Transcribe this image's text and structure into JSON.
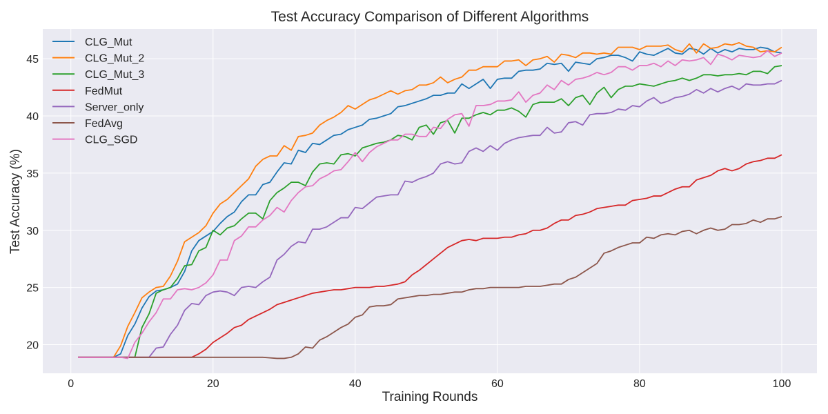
{
  "chart_data": {
    "type": "line",
    "title": "Test Accuracy Comparison of Different Algorithms",
    "xlabel": "Training Rounds",
    "ylabel": "Test Accuracy (%)",
    "xlim": [
      -3.95,
      104.95
    ],
    "ylim": [
      17.5,
      47.6
    ],
    "xticks": [
      0,
      20,
      40,
      60,
      80,
      100
    ],
    "yticks": [
      20,
      25,
      30,
      35,
      40,
      45
    ],
    "grid": true,
    "legend_position": "top-left",
    "x": [
      1,
      2,
      3,
      4,
      5,
      6,
      7,
      8,
      9,
      10,
      11,
      12,
      13,
      14,
      15,
      16,
      17,
      18,
      19,
      20,
      21,
      22,
      23,
      24,
      25,
      26,
      27,
      28,
      29,
      30,
      31,
      32,
      33,
      34,
      35,
      36,
      37,
      38,
      39,
      40,
      41,
      42,
      43,
      44,
      45,
      46,
      47,
      48,
      49,
      50,
      51,
      52,
      53,
      54,
      55,
      56,
      57,
      58,
      59,
      60,
      61,
      62,
      63,
      64,
      65,
      66,
      67,
      68,
      69,
      70,
      71,
      72,
      73,
      74,
      75,
      76,
      77,
      78,
      79,
      80,
      81,
      82,
      83,
      84,
      85,
      86,
      87,
      88,
      89,
      90,
      91,
      92,
      93,
      94,
      95,
      96,
      97,
      98,
      99,
      100
    ],
    "series": [
      {
        "name": "CLG_Mut",
        "color": "#1f77b4",
        "values": [
          18.9,
          18.9,
          18.9,
          18.9,
          18.9,
          18.9,
          19.2,
          20.8,
          21.8,
          23.2,
          24.2,
          24.7,
          24.8,
          25.0,
          25.3,
          26.4,
          28.2,
          29.1,
          29.5,
          29.9,
          30.6,
          31.2,
          31.6,
          32.5,
          33.1,
          33.1,
          34.0,
          34.2,
          35.1,
          35.9,
          35.8,
          37.0,
          36.8,
          37.6,
          37.5,
          37.9,
          38.3,
          38.4,
          38.8,
          39.0,
          39.2,
          39.7,
          39.8,
          40.0,
          40.2,
          40.8,
          40.9,
          41.1,
          41.3,
          41.5,
          41.8,
          41.8,
          42.0,
          42.0,
          42.8,
          42.4,
          42.8,
          43.2,
          42.4,
          43.2,
          43.3,
          43.3,
          43.9,
          44.0,
          44.0,
          44.1,
          44.6,
          44.5,
          44.6,
          43.9,
          44.7,
          44.6,
          44.5,
          45.0,
          45.1,
          45.3,
          45.3,
          45.1,
          44.8,
          45.6,
          45.4,
          45.3,
          45.6,
          45.9,
          45.5,
          45.4,
          45.9,
          45.8,
          45.4,
          45.9,
          45.5,
          45.8,
          45.6,
          45.9,
          45.8,
          45.8,
          46.0,
          45.9,
          45.6,
          45.5
        ]
      },
      {
        "name": "CLG_Mut_2",
        "color": "#ff7f0e",
        "values": [
          18.9,
          18.9,
          18.9,
          18.9,
          18.9,
          18.9,
          19.9,
          21.6,
          22.8,
          24.1,
          24.6,
          25.0,
          25.1,
          26.0,
          27.3,
          29.0,
          29.4,
          29.8,
          30.4,
          31.5,
          32.3,
          32.7,
          33.3,
          33.9,
          34.5,
          35.6,
          36.2,
          36.5,
          36.5,
          37.4,
          37.0,
          38.2,
          38.3,
          38.5,
          39.2,
          39.6,
          39.9,
          40.3,
          40.9,
          40.6,
          41.0,
          41.4,
          41.6,
          41.9,
          42.2,
          41.9,
          42.2,
          42.3,
          42.7,
          42.7,
          42.9,
          43.4,
          42.9,
          43.2,
          43.4,
          44.0,
          44.0,
          44.3,
          44.3,
          44.3,
          44.8,
          44.8,
          44.9,
          44.4,
          44.9,
          45.0,
          45.2,
          44.7,
          45.4,
          45.3,
          45.1,
          45.5,
          45.5,
          45.4,
          45.5,
          45.4,
          46.0,
          46.0,
          46.0,
          45.8,
          46.1,
          46.1,
          46.1,
          46.2,
          45.8,
          45.6,
          46.3,
          45.5,
          46.3,
          45.9,
          46.0,
          46.3,
          46.2,
          46.4,
          46.1,
          46.0,
          45.6,
          45.7,
          45.6,
          46.0
        ]
      },
      {
        "name": "CLG_Mut_3",
        "color": "#2ca02c",
        "values": [
          18.9,
          18.9,
          18.9,
          18.9,
          18.9,
          18.9,
          18.9,
          18.9,
          18.9,
          21.5,
          22.7,
          24.5,
          24.8,
          25.0,
          25.8,
          26.9,
          27.0,
          28.2,
          28.5,
          30.0,
          29.6,
          30.2,
          30.4,
          31.0,
          31.5,
          31.5,
          31.0,
          32.6,
          33.3,
          33.7,
          34.2,
          34.2,
          33.9,
          35.1,
          35.8,
          35.9,
          35.8,
          36.6,
          36.7,
          36.5,
          37.2,
          37.4,
          37.6,
          37.7,
          37.9,
          38.3,
          38.2,
          37.9,
          39.0,
          39.2,
          38.4,
          39.4,
          39.6,
          38.5,
          39.8,
          39.8,
          40.1,
          40.3,
          40.1,
          40.5,
          40.5,
          40.7,
          40.4,
          39.9,
          41.0,
          41.2,
          41.2,
          41.2,
          41.5,
          40.9,
          41.6,
          41.8,
          41.0,
          42.0,
          42.5,
          41.6,
          42.3,
          42.6,
          42.6,
          42.8,
          42.7,
          42.6,
          42.8,
          43.0,
          43.1,
          43.3,
          43.1,
          43.3,
          43.6,
          43.6,
          43.5,
          43.6,
          43.6,
          43.7,
          43.6,
          43.9,
          43.9,
          43.7,
          44.3,
          44.4
        ]
      },
      {
        "name": "FedMut",
        "color": "#d62728",
        "values": [
          18.9,
          18.9,
          18.9,
          18.9,
          18.9,
          18.9,
          18.9,
          18.9,
          18.9,
          18.9,
          18.9,
          18.9,
          18.9,
          18.9,
          18.9,
          18.9,
          18.9,
          19.2,
          19.6,
          20.2,
          20.6,
          21.0,
          21.5,
          21.7,
          22.2,
          22.5,
          22.8,
          23.1,
          23.5,
          23.7,
          23.9,
          24.1,
          24.3,
          24.5,
          24.6,
          24.7,
          24.8,
          24.8,
          24.9,
          25.0,
          25.0,
          25.0,
          25.1,
          25.1,
          25.2,
          25.3,
          25.5,
          26.1,
          26.5,
          27.0,
          27.5,
          28.0,
          28.5,
          28.8,
          29.1,
          29.2,
          29.1,
          29.3,
          29.3,
          29.3,
          29.4,
          29.4,
          29.6,
          29.7,
          30.0,
          30.0,
          30.2,
          30.6,
          30.9,
          30.9,
          31.3,
          31.4,
          31.6,
          31.9,
          32.0,
          32.1,
          32.2,
          32.2,
          32.6,
          32.7,
          32.8,
          33.0,
          33.0,
          33.3,
          33.6,
          33.8,
          33.8,
          34.4,
          34.6,
          34.8,
          35.2,
          35.4,
          35.2,
          35.4,
          35.8,
          36.0,
          36.1,
          36.3,
          36.3,
          36.6
        ]
      },
      {
        "name": "Server_only",
        "color": "#9467bd",
        "values": [
          18.9,
          18.9,
          18.9,
          18.9,
          18.9,
          18.9,
          18.9,
          18.9,
          18.9,
          18.9,
          18.9,
          19.7,
          19.8,
          20.9,
          21.7,
          23.0,
          23.6,
          23.5,
          24.3,
          24.6,
          24.7,
          24.6,
          24.3,
          25.0,
          25.1,
          25.0,
          25.5,
          25.9,
          27.4,
          27.9,
          28.6,
          29.0,
          28.9,
          30.1,
          30.1,
          30.3,
          30.7,
          31.1,
          31.1,
          32.0,
          31.9,
          32.4,
          32.9,
          33.0,
          33.1,
          33.1,
          34.3,
          34.2,
          34.5,
          34.7,
          35.0,
          35.8,
          36.0,
          35.8,
          35.9,
          36.9,
          37.2,
          36.9,
          37.4,
          37.0,
          37.6,
          37.9,
          38.1,
          38.2,
          38.3,
          38.3,
          39.0,
          38.5,
          38.6,
          39.4,
          39.5,
          39.2,
          40.1,
          40.2,
          40.2,
          40.3,
          40.6,
          40.5,
          40.9,
          40.8,
          41.3,
          41.6,
          41.1,
          41.3,
          41.6,
          41.7,
          41.9,
          42.3,
          42.0,
          42.4,
          42.1,
          42.4,
          42.6,
          42.3,
          42.8,
          42.7,
          42.7,
          42.8,
          42.8,
          43.1
        ]
      },
      {
        "name": "FedAvg",
        "color": "#8c564b",
        "values": [
          18.9,
          18.9,
          18.9,
          18.9,
          18.9,
          18.9,
          18.9,
          18.9,
          18.9,
          18.9,
          18.9,
          18.9,
          18.9,
          18.9,
          18.9,
          18.9,
          18.9,
          18.9,
          18.9,
          18.9,
          18.9,
          18.9,
          18.9,
          18.9,
          18.9,
          18.9,
          18.9,
          18.85,
          18.8,
          18.8,
          18.9,
          19.2,
          19.8,
          19.7,
          20.4,
          20.7,
          21.1,
          21.5,
          21.8,
          22.4,
          22.6,
          23.3,
          23.4,
          23.4,
          23.5,
          24.0,
          24.1,
          24.2,
          24.3,
          24.3,
          24.4,
          24.4,
          24.5,
          24.6,
          24.6,
          24.8,
          24.9,
          24.9,
          25.0,
          25.0,
          25.0,
          25.0,
          25.0,
          25.1,
          25.1,
          25.1,
          25.2,
          25.3,
          25.3,
          25.7,
          25.9,
          26.3,
          26.7,
          27.1,
          28.0,
          28.2,
          28.5,
          28.7,
          28.9,
          28.9,
          29.4,
          29.3,
          29.6,
          29.7,
          29.6,
          29.9,
          30.0,
          29.7,
          30.0,
          30.2,
          30.0,
          30.1,
          30.5,
          30.5,
          30.6,
          30.9,
          30.7,
          31.0,
          31.0,
          31.2
        ]
      },
      {
        "name": "CLG_SGD",
        "color": "#e377c2",
        "values": [
          18.9,
          18.9,
          18.9,
          18.9,
          18.9,
          18.9,
          18.9,
          18.8,
          20.2,
          21.0,
          22.0,
          22.8,
          24.0,
          24.0,
          24.8,
          24.9,
          24.8,
          25.0,
          25.4,
          26.1,
          27.4,
          27.4,
          29.1,
          29.5,
          30.3,
          30.3,
          30.9,
          31.3,
          32.0,
          31.6,
          32.6,
          33.3,
          33.8,
          33.9,
          34.5,
          34.8,
          35.2,
          35.3,
          36.0,
          36.8,
          36.0,
          36.8,
          37.3,
          37.6,
          37.9,
          37.9,
          38.4,
          38.4,
          38.2,
          38.2,
          39.0,
          38.9,
          39.7,
          40.1,
          40.2,
          39.1,
          40.9,
          40.9,
          41.0,
          41.3,
          41.3,
          41.4,
          42.1,
          41.2,
          41.8,
          42.0,
          42.7,
          42.3,
          43.1,
          42.7,
          43.2,
          43.3,
          43.5,
          43.8,
          43.6,
          43.8,
          44.3,
          44.3,
          44.0,
          44.4,
          44.4,
          44.6,
          44.3,
          44.8,
          44.4,
          44.9,
          44.8,
          44.9,
          45.1,
          44.5,
          45.4,
          45.2,
          44.9,
          45.3,
          45.2,
          45.1,
          45.2,
          45.7,
          45.2,
          45.5
        ]
      }
    ]
  }
}
